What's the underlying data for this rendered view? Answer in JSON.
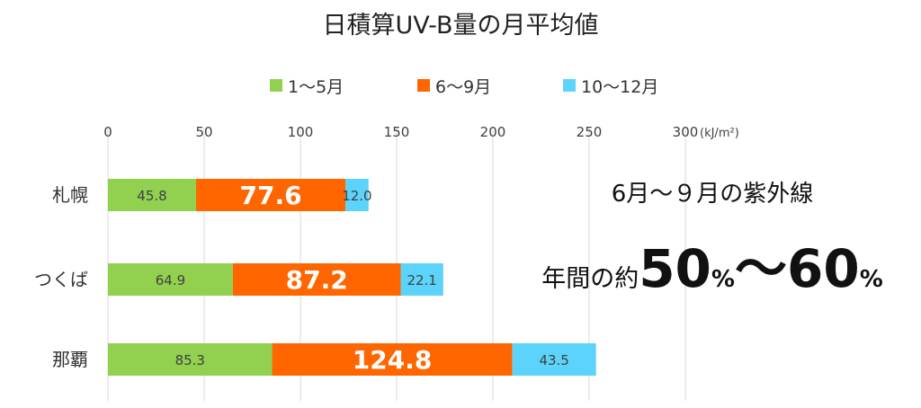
{
  "chart_data": {
    "type": "bar",
    "orientation": "horizontal",
    "stacked": true,
    "title": "日積算UV-B量の月平均値",
    "unit": "(kJ/m²)",
    "categories": [
      "札幌",
      "つくば",
      "那覇"
    ],
    "series": [
      {
        "name": "1～5月",
        "color": "#92d050",
        "values": [
          45.8,
          64.9,
          85.3
        ],
        "labels": [
          "45.8",
          "64.9",
          "85.3"
        ]
      },
      {
        "name": "6～9月",
        "color": "#ff6600",
        "values": [
          77.6,
          87.2,
          124.8
        ],
        "labels": [
          "77.6",
          "87.2",
          "124.8"
        ]
      },
      {
        "name": "10～12月",
        "color": "#5bd3fa",
        "values": [
          12.0,
          22.1,
          43.5
        ],
        "labels": [
          "12.0",
          "22.1",
          "43.5"
        ]
      }
    ],
    "x_ticks": [
      "0",
      "50",
      "100",
      "150",
      "200",
      "250",
      "300"
    ],
    "xlim": [
      0,
      300
    ],
    "grid": true,
    "legend": "top"
  },
  "annotation": {
    "line1": "6月～９月の紫外線",
    "line2_prefix": "年間の約",
    "line2_num1": "50",
    "line2_pct1": "%",
    "line2_tilde": "～",
    "line2_num2": "60",
    "line2_pct2": "%"
  }
}
